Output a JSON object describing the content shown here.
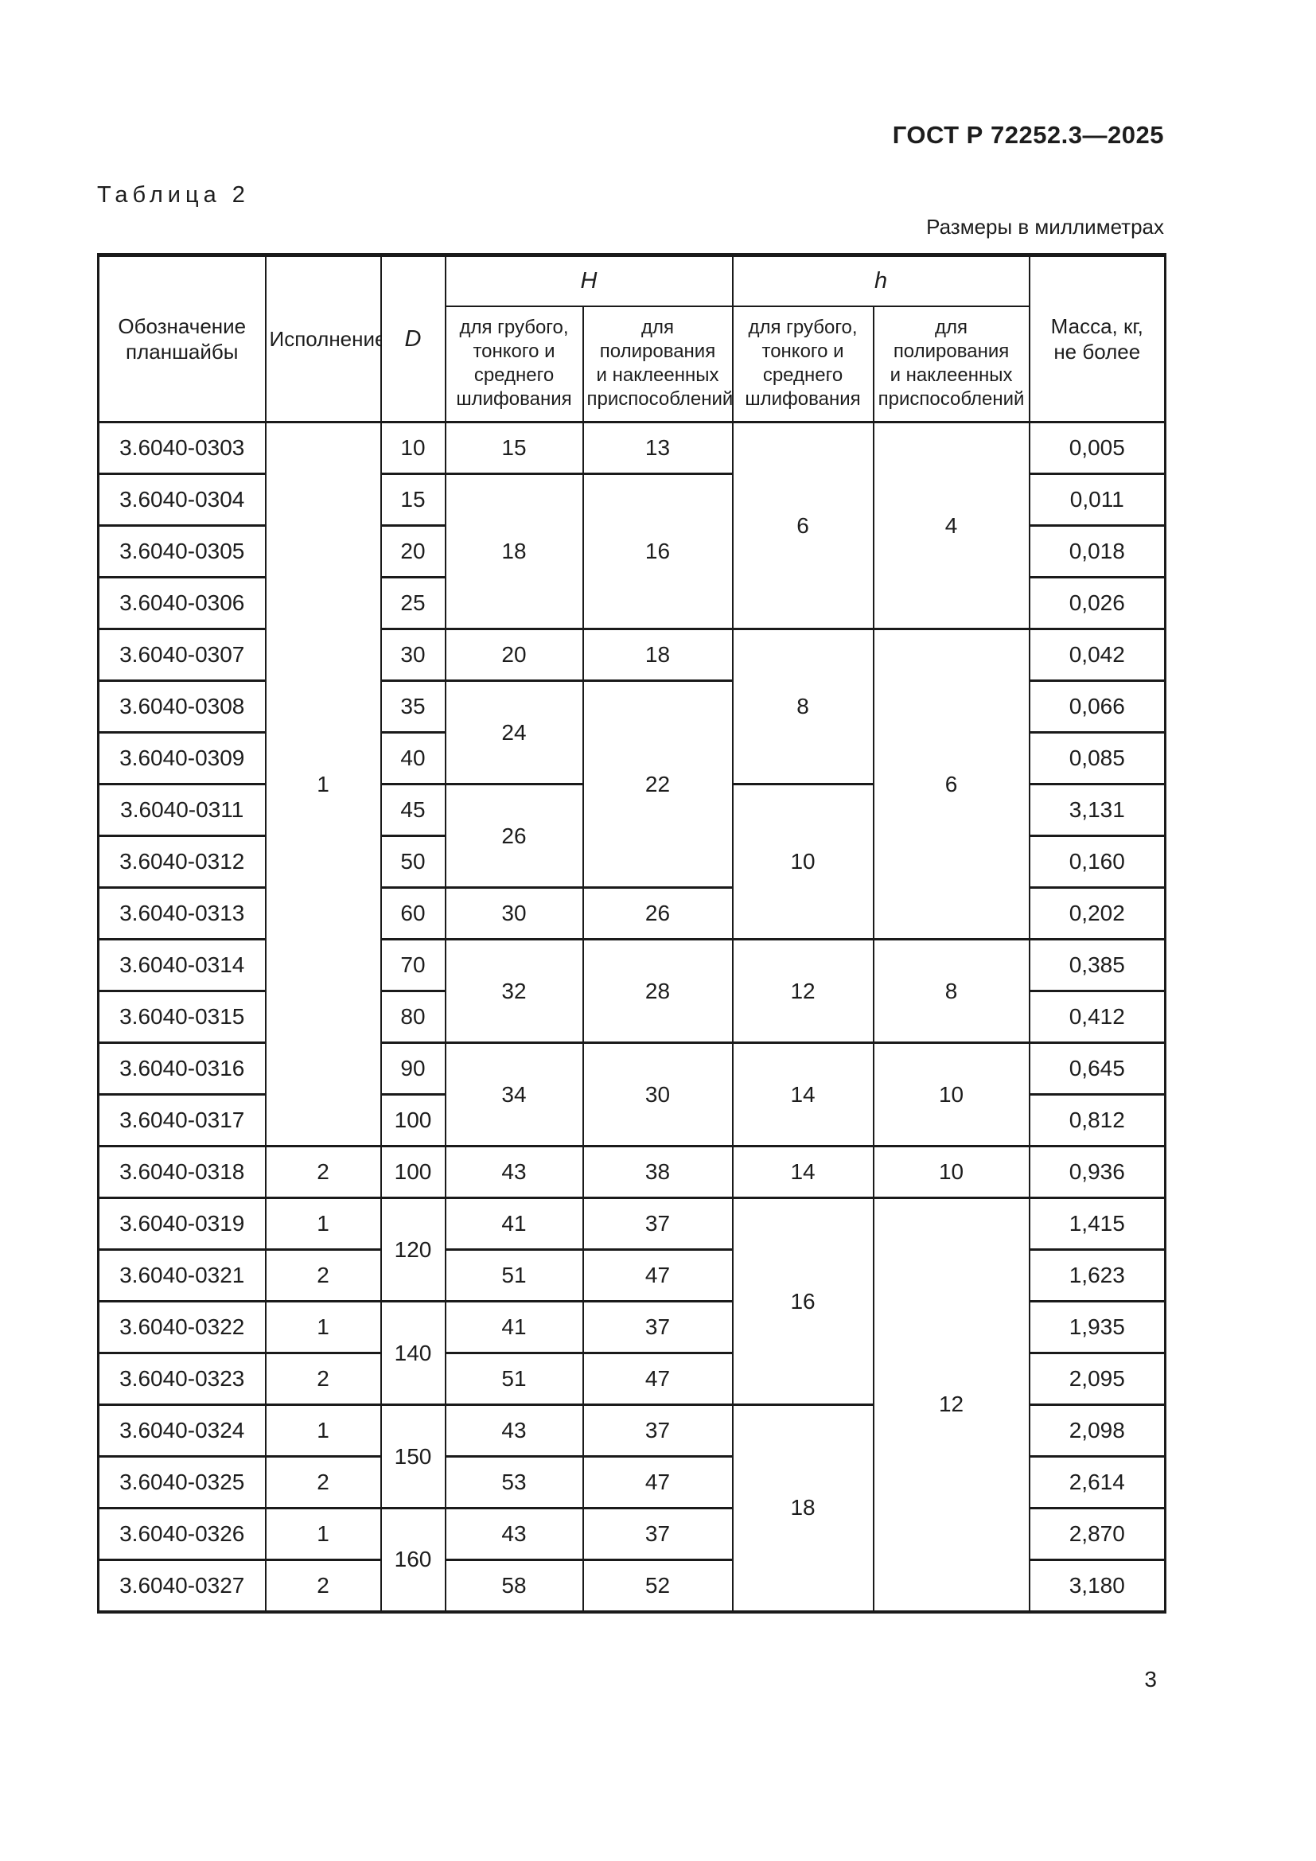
{
  "page": {
    "doc_number": "ГОСТ Р 72252.3—2025",
    "table_caption": "Таблица 2",
    "units_note": "Размеры в миллиметрах",
    "page_number": "3"
  },
  "table": {
    "header": {
      "designation": "Обозначение\nпланшайбы",
      "version": "Исполнение",
      "d": "D",
      "H_group": "H",
      "h_group": "h",
      "H_grind": "для грубого,\nтонкого и\nсреднего\nшлифования",
      "H_polish": "для\nполирования\nи наклеенных\nприспособлений",
      "h_grind": "для грубого,\nтонкого и\nсреднего\nшлифования",
      "h_polish": "для полирования\nи наклеенных\nприспособлений",
      "mass": "Масса, кг,\nне  более"
    },
    "rows": [
      {
        "cells": [
          {
            "c": "designation",
            "v": "3.6040-0303"
          },
          {
            "c": "version",
            "v": "1",
            "rs": 14
          },
          {
            "c": "d",
            "v": "10"
          },
          {
            "c": "H_grind",
            "v": "15"
          },
          {
            "c": "H_polish",
            "v": "13"
          },
          {
            "c": "h_grind",
            "v": "6",
            "rs": 4
          },
          {
            "c": "h_polish",
            "v": "4",
            "rs": 4
          },
          {
            "c": "mass",
            "v": "0,005"
          }
        ]
      },
      {
        "cells": [
          {
            "c": "designation",
            "v": "3.6040-0304"
          },
          {
            "c": "d",
            "v": "15"
          },
          {
            "c": "H_grind",
            "v": "18",
            "rs": 3
          },
          {
            "c": "H_polish",
            "v": "16",
            "rs": 3
          },
          {
            "c": "mass",
            "v": "0,011"
          }
        ]
      },
      {
        "cells": [
          {
            "c": "designation",
            "v": "3.6040-0305"
          },
          {
            "c": "d",
            "v": "20"
          },
          {
            "c": "mass",
            "v": "0,018"
          }
        ]
      },
      {
        "cells": [
          {
            "c": "designation",
            "v": "3.6040-0306"
          },
          {
            "c": "d",
            "v": "25"
          },
          {
            "c": "mass",
            "v": "0,026"
          }
        ]
      },
      {
        "cells": [
          {
            "c": "designation",
            "v": "3.6040-0307"
          },
          {
            "c": "d",
            "v": "30"
          },
          {
            "c": "H_grind",
            "v": "20"
          },
          {
            "c": "H_polish",
            "v": "18"
          },
          {
            "c": "h_grind",
            "v": "8",
            "rs": 3
          },
          {
            "c": "h_polish",
            "v": "6",
            "rs": 6
          },
          {
            "c": "mass",
            "v": "0,042"
          }
        ]
      },
      {
        "cells": [
          {
            "c": "designation",
            "v": "3.6040-0308"
          },
          {
            "c": "d",
            "v": "35"
          },
          {
            "c": "H_grind",
            "v": "24",
            "rs": 2
          },
          {
            "c": "H_polish",
            "v": "22",
            "rs": 4
          },
          {
            "c": "mass",
            "v": "0,066"
          }
        ]
      },
      {
        "cells": [
          {
            "c": "designation",
            "v": "3.6040-0309"
          },
          {
            "c": "d",
            "v": "40"
          },
          {
            "c": "mass",
            "v": "0,085"
          }
        ]
      },
      {
        "cells": [
          {
            "c": "designation",
            "v": "3.6040-0311"
          },
          {
            "c": "d",
            "v": "45"
          },
          {
            "c": "H_grind",
            "v": "26",
            "rs": 2
          },
          {
            "c": "h_grind",
            "v": "10",
            "rs": 3
          },
          {
            "c": "mass",
            "v": "3,131"
          }
        ]
      },
      {
        "cells": [
          {
            "c": "designation",
            "v": "3.6040-0312"
          },
          {
            "c": "d",
            "v": "50"
          },
          {
            "c": "mass",
            "v": "0,160"
          }
        ]
      },
      {
        "cells": [
          {
            "c": "designation",
            "v": "3.6040-0313"
          },
          {
            "c": "d",
            "v": "60"
          },
          {
            "c": "H_grind",
            "v": "30"
          },
          {
            "c": "H_polish",
            "v": "26"
          },
          {
            "c": "mass",
            "v": "0,202"
          }
        ]
      },
      {
        "cells": [
          {
            "c": "designation",
            "v": "3.6040-0314"
          },
          {
            "c": "d",
            "v": "70"
          },
          {
            "c": "H_grind",
            "v": "32",
            "rs": 2
          },
          {
            "c": "H_polish",
            "v": "28",
            "rs": 2
          },
          {
            "c": "h_grind",
            "v": "12",
            "rs": 2
          },
          {
            "c": "h_polish",
            "v": "8",
            "rs": 2
          },
          {
            "c": "mass",
            "v": "0,385"
          }
        ]
      },
      {
        "cells": [
          {
            "c": "designation",
            "v": "3.6040-0315"
          },
          {
            "c": "d",
            "v": "80"
          },
          {
            "c": "mass",
            "v": "0,412"
          }
        ]
      },
      {
        "cells": [
          {
            "c": "designation",
            "v": "3.6040-0316"
          },
          {
            "c": "d",
            "v": "90"
          },
          {
            "c": "H_grind",
            "v": "34",
            "rs": 2
          },
          {
            "c": "H_polish",
            "v": "30",
            "rs": 2
          },
          {
            "c": "h_grind",
            "v": "14",
            "rs": 2
          },
          {
            "c": "h_polish",
            "v": "10",
            "rs": 2
          },
          {
            "c": "mass",
            "v": "0,645"
          }
        ]
      },
      {
        "cells": [
          {
            "c": "designation",
            "v": "3.6040-0317"
          },
          {
            "c": "d",
            "v": "100"
          },
          {
            "c": "mass",
            "v": "0,812"
          }
        ]
      },
      {
        "cells": [
          {
            "c": "designation",
            "v": "3.6040-0318"
          },
          {
            "c": "version",
            "v": "2"
          },
          {
            "c": "d",
            "v": "100"
          },
          {
            "c": "H_grind",
            "v": "43"
          },
          {
            "c": "H_polish",
            "v": "38"
          },
          {
            "c": "h_grind",
            "v": "14"
          },
          {
            "c": "h_polish",
            "v": "10"
          },
          {
            "c": "mass",
            "v": "0,936"
          }
        ]
      },
      {
        "cells": [
          {
            "c": "designation",
            "v": "3.6040-0319"
          },
          {
            "c": "version",
            "v": "1"
          },
          {
            "c": "d",
            "v": "120",
            "rs": 2
          },
          {
            "c": "H_grind",
            "v": "41"
          },
          {
            "c": "H_polish",
            "v": "37"
          },
          {
            "c": "h_grind",
            "v": "16",
            "rs": 4
          },
          {
            "c": "h_polish",
            "v": "12",
            "rs": 8
          },
          {
            "c": "mass",
            "v": "1,415"
          }
        ]
      },
      {
        "cells": [
          {
            "c": "designation",
            "v": "3.6040-0321"
          },
          {
            "c": "version",
            "v": "2"
          },
          {
            "c": "H_grind",
            "v": "51"
          },
          {
            "c": "H_polish",
            "v": "47"
          },
          {
            "c": "mass",
            "v": "1,623"
          }
        ]
      },
      {
        "cells": [
          {
            "c": "designation",
            "v": "3.6040-0322"
          },
          {
            "c": "version",
            "v": "1"
          },
          {
            "c": "d",
            "v": "140",
            "rs": 2
          },
          {
            "c": "H_grind",
            "v": "41"
          },
          {
            "c": "H_polish",
            "v": "37"
          },
          {
            "c": "mass",
            "v": "1,935"
          }
        ]
      },
      {
        "cells": [
          {
            "c": "designation",
            "v": "3.6040-0323"
          },
          {
            "c": "version",
            "v": "2"
          },
          {
            "c": "H_grind",
            "v": "51"
          },
          {
            "c": "H_polish",
            "v": "47"
          },
          {
            "c": "mass",
            "v": "2,095"
          }
        ]
      },
      {
        "cells": [
          {
            "c": "designation",
            "v": "3.6040-0324"
          },
          {
            "c": "version",
            "v": "1"
          },
          {
            "c": "d",
            "v": "150",
            "rs": 2
          },
          {
            "c": "H_grind",
            "v": "43"
          },
          {
            "c": "H_polish",
            "v": "37"
          },
          {
            "c": "h_grind",
            "v": "18",
            "rs": 4
          },
          {
            "c": "mass",
            "v": "2,098"
          }
        ]
      },
      {
        "cells": [
          {
            "c": "designation",
            "v": "3.6040-0325"
          },
          {
            "c": "version",
            "v": "2"
          },
          {
            "c": "H_grind",
            "v": "53"
          },
          {
            "c": "H_polish",
            "v": "47"
          },
          {
            "c": "mass",
            "v": "2,614"
          }
        ]
      },
      {
        "cells": [
          {
            "c": "designation",
            "v": "3.6040-0326"
          },
          {
            "c": "version",
            "v": "1"
          },
          {
            "c": "d",
            "v": "160",
            "rs": 2
          },
          {
            "c": "H_grind",
            "v": "43"
          },
          {
            "c": "H_polish",
            "v": "37"
          },
          {
            "c": "mass",
            "v": "2,870"
          }
        ]
      },
      {
        "cells": [
          {
            "c": "designation",
            "v": "3.6040-0327"
          },
          {
            "c": "version",
            "v": "2"
          },
          {
            "c": "H_grind",
            "v": "58"
          },
          {
            "c": "H_polish",
            "v": "52"
          },
          {
            "c": "mass",
            "v": "3,180"
          }
        ]
      }
    ]
  }
}
